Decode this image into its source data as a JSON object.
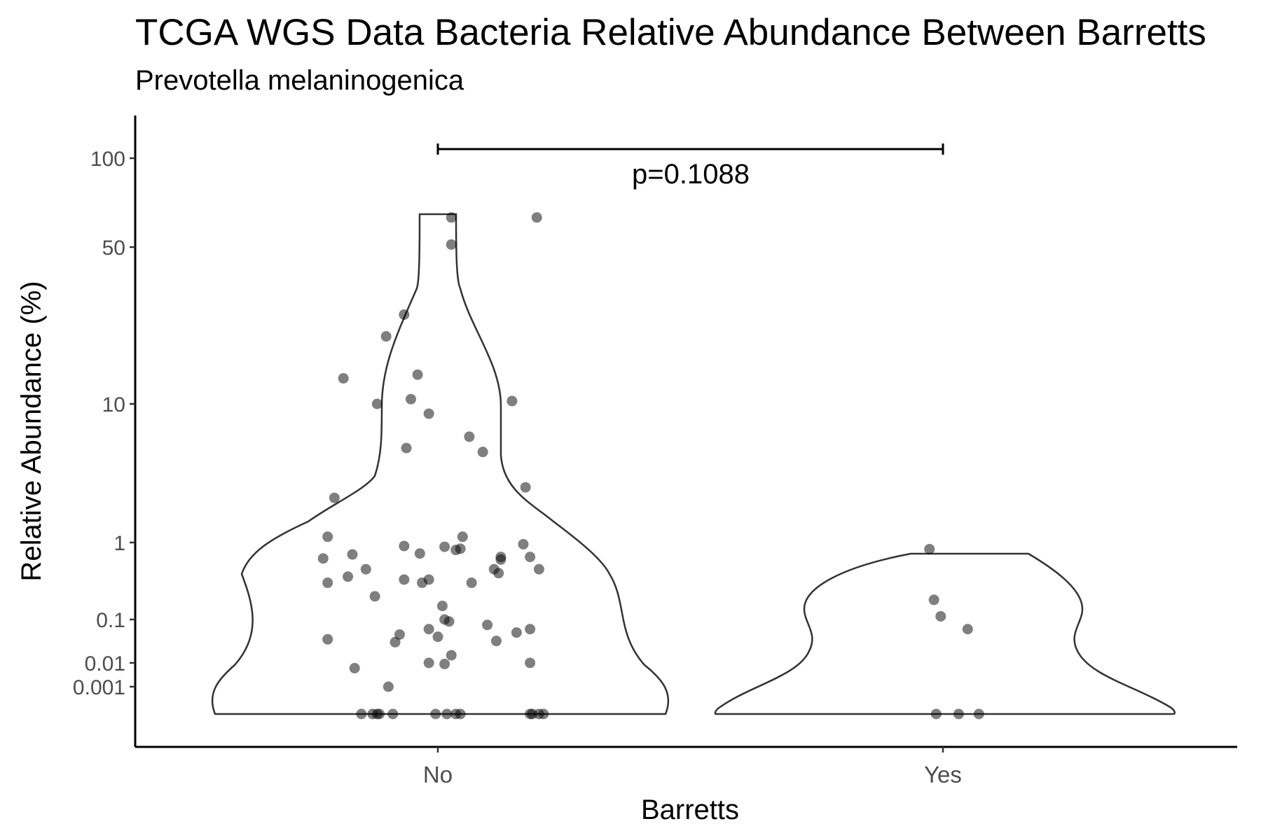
{
  "chart_data": {
    "type": "violin",
    "title": "TCGA WGS Data Bacteria Relative Abundance Between Barretts",
    "subtitle": "Prevotella melaninogenica",
    "xlabel": "Barretts",
    "ylabel": "Relative Abundance (%)",
    "y_scale": "pseudo-log",
    "y_ticks": [
      "100",
      "50",
      "10",
      "1",
      "0.1",
      "0.01",
      "0.001"
    ],
    "categories": [
      "No",
      "Yes"
    ],
    "grid": false,
    "legend": "none",
    "annotation": {
      "text": "p=0.1088",
      "from": "No",
      "to": "Yes"
    },
    "point_color": "#000000",
    "point_alpha": 0.5,
    "groups": [
      {
        "name": "No",
        "points": [
          {
            "jitter": 0.06,
            "y": 63
          },
          {
            "jitter": 0.44,
            "y": 63
          },
          {
            "jitter": 0.06,
            "y": 51
          },
          {
            "jitter": -0.15,
            "y": 25
          },
          {
            "jitter": -0.23,
            "y": 20
          },
          {
            "jitter": -0.42,
            "y": 13
          },
          {
            "jitter": -0.09,
            "y": 13.5
          },
          {
            "jitter": -0.27,
            "y": 10
          },
          {
            "jitter": -0.12,
            "y": 10.5
          },
          {
            "jitter": 0.33,
            "y": 10.3
          },
          {
            "jitter": -0.04,
            "y": 8.5
          },
          {
            "jitter": 0.14,
            "y": 5.8
          },
          {
            "jitter": -0.14,
            "y": 4.8
          },
          {
            "jitter": 0.2,
            "y": 4.5
          },
          {
            "jitter": 0.39,
            "y": 2.5
          },
          {
            "jitter": -0.46,
            "y": 2.1
          },
          {
            "jitter": -0.49,
            "y": 1.1
          },
          {
            "jitter": 0.11,
            "y": 1.1
          },
          {
            "jitter": 0.38,
            "y": 0.95
          },
          {
            "jitter": -0.15,
            "y": 0.9
          },
          {
            "jitter": 0.03,
            "y": 0.88
          },
          {
            "jitter": 0.08,
            "y": 0.8
          },
          {
            "jitter": 0.1,
            "y": 0.83
          },
          {
            "jitter": -0.08,
            "y": 0.72
          },
          {
            "jitter": -0.38,
            "y": 0.7
          },
          {
            "jitter": -0.51,
            "y": 0.62
          },
          {
            "jitter": 0.28,
            "y": 0.65
          },
          {
            "jitter": 0.41,
            "y": 0.65
          },
          {
            "jitter": 0.28,
            "y": 0.6
          },
          {
            "jitter": 0.25,
            "y": 0.45
          },
          {
            "jitter": -0.32,
            "y": 0.45
          },
          {
            "jitter": 0.45,
            "y": 0.45
          },
          {
            "jitter": -0.4,
            "y": 0.36
          },
          {
            "jitter": 0.27,
            "y": 0.4
          },
          {
            "jitter": -0.15,
            "y": 0.33
          },
          {
            "jitter": -0.04,
            "y": 0.33
          },
          {
            "jitter": -0.49,
            "y": 0.3
          },
          {
            "jitter": -0.07,
            "y": 0.3
          },
          {
            "jitter": 0.15,
            "y": 0.3
          },
          {
            "jitter": -0.28,
            "y": 0.2
          },
          {
            "jitter": 0.02,
            "y": 0.15
          },
          {
            "jitter": 0.03,
            "y": 0.1
          },
          {
            "jitter": 0.05,
            "y": 0.09
          },
          {
            "jitter": 0.22,
            "y": 0.075
          },
          {
            "jitter": -0.04,
            "y": 0.06
          },
          {
            "jitter": 0.41,
            "y": 0.06
          },
          {
            "jitter": 0.35,
            "y": 0.05
          },
          {
            "jitter": -0.17,
            "y": 0.045
          },
          {
            "jitter": 0.0,
            "y": 0.04
          },
          {
            "jitter": -0.49,
            "y": 0.035
          },
          {
            "jitter": -0.19,
            "y": 0.03
          },
          {
            "jitter": 0.26,
            "y": 0.032
          },
          {
            "jitter": 0.06,
            "y": 0.015
          },
          {
            "jitter": -0.04,
            "y": 0.01
          },
          {
            "jitter": 0.41,
            "y": 0.01
          },
          {
            "jitter": 0.03,
            "y": 0.009
          },
          {
            "jitter": -0.37,
            "y": 0.006
          },
          {
            "jitter": -0.22,
            "y": 0.001
          },
          {
            "jitter": -0.34,
            "y": 0
          },
          {
            "jitter": -0.29,
            "y": 0
          },
          {
            "jitter": -0.27,
            "y": 0
          },
          {
            "jitter": -0.26,
            "y": 0
          },
          {
            "jitter": -0.2,
            "y": 0
          },
          {
            "jitter": -0.01,
            "y": 0
          },
          {
            "jitter": 0.04,
            "y": 0
          },
          {
            "jitter": 0.08,
            "y": 0
          },
          {
            "jitter": 0.1,
            "y": 0
          },
          {
            "jitter": 0.41,
            "y": 0
          },
          {
            "jitter": 0.42,
            "y": 0
          },
          {
            "jitter": 0.45,
            "y": 0
          },
          {
            "jitter": 0.47,
            "y": 0
          }
        ]
      },
      {
        "name": "Yes",
        "points": [
          {
            "jitter": -0.06,
            "y": 0.82
          },
          {
            "jitter": -0.04,
            "y": 0.18
          },
          {
            "jitter": -0.01,
            "y": 0.11
          },
          {
            "jitter": 0.11,
            "y": 0.06
          },
          {
            "jitter": -0.03,
            "y": 0
          },
          {
            "jitter": 0.07,
            "y": 0
          },
          {
            "jitter": 0.16,
            "y": 0
          }
        ]
      }
    ]
  }
}
